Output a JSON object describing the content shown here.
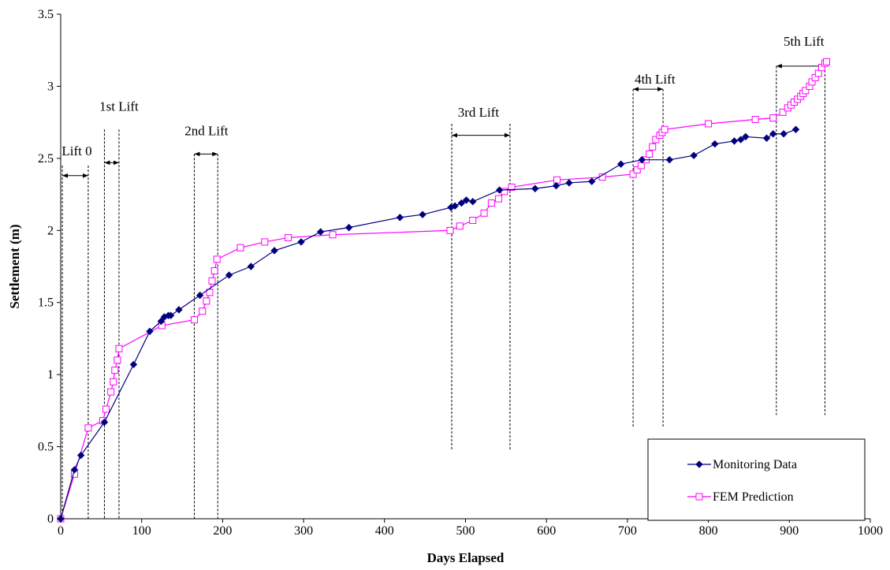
{
  "chart_data": {
    "type": "line",
    "xlabel": "Days Elapsed",
    "ylabel": "Settlement (m)",
    "xlim": [
      0,
      1000
    ],
    "ylim": [
      0,
      3.5
    ],
    "xticks": [
      0,
      100,
      200,
      300,
      400,
      500,
      600,
      700,
      800,
      900,
      1000
    ],
    "yticks": [
      0,
      0.5,
      1,
      1.5,
      2,
      2.5,
      3,
      3.5
    ],
    "ytick_labels": [
      "0",
      "0.5",
      "1",
      "1.5",
      "2",
      "2.5",
      "3",
      "3.5"
    ],
    "grid": false,
    "legend": {
      "position": "bottom-right"
    },
    "series": [
      {
        "name": "Monitoring Data",
        "color": "#00007F",
        "marker": "diamond",
        "x": [
          0,
          17,
          25,
          54,
          90,
          110,
          124,
          128,
          133,
          136,
          146,
          172,
          208,
          235,
          264,
          297,
          321,
          356,
          419,
          447,
          482,
          487,
          495,
          501,
          509,
          542,
          586,
          612,
          628,
          656,
          692,
          718,
          752,
          782,
          808,
          832,
          840,
          846,
          872,
          880,
          893,
          908
        ],
        "y": [
          0,
          0.34,
          0.44,
          0.67,
          1.07,
          1.3,
          1.37,
          1.4,
          1.41,
          1.41,
          1.45,
          1.55,
          1.69,
          1.75,
          1.86,
          1.92,
          1.99,
          2.02,
          2.09,
          2.11,
          2.16,
          2.17,
          2.19,
          2.21,
          2.2,
          2.28,
          2.29,
          2.31,
          2.33,
          2.34,
          2.46,
          2.49,
          2.49,
          2.52,
          2.6,
          2.62,
          2.63,
          2.65,
          2.64,
          2.67,
          2.67,
          2.7
        ]
      },
      {
        "name": "FEM Prediction",
        "color": "#FF00FF",
        "marker": "square-open",
        "x": [
          0,
          17,
          34,
          52,
          56,
          62,
          65,
          67,
          70,
          72,
          125,
          165,
          175,
          180,
          184,
          187,
          190,
          193,
          222,
          252,
          281,
          336,
          481,
          493,
          509,
          523,
          532,
          541,
          548,
          557,
          613,
          669,
          707,
          712,
          717,
          723,
          727,
          731,
          735,
          740,
          743,
          746,
          800,
          858,
          880,
          892,
          898,
          902,
          906,
          910,
          914,
          917,
          920,
          925,
          928,
          932,
          936,
          940,
          944,
          946
        ],
        "y": [
          0,
          0.31,
          0.63,
          0.68,
          0.76,
          0.88,
          0.95,
          1.03,
          1.1,
          1.18,
          1.34,
          1.38,
          1.44,
          1.51,
          1.57,
          1.65,
          1.72,
          1.8,
          1.88,
          1.92,
          1.95,
          1.97,
          2.0,
          2.03,
          2.07,
          2.12,
          2.19,
          2.22,
          2.27,
          2.3,
          2.35,
          2.37,
          2.39,
          2.42,
          2.45,
          2.49,
          2.53,
          2.58,
          2.63,
          2.66,
          2.68,
          2.7,
          2.74,
          2.77,
          2.78,
          2.82,
          2.85,
          2.87,
          2.89,
          2.91,
          2.93,
          2.95,
          2.97,
          3.0,
          3.03,
          3.06,
          3.09,
          3.13,
          3.16,
          3.17
        ]
      }
    ],
    "annotations": [
      {
        "label": "Lift 0",
        "range": [
          2,
          34
        ],
        "arrow_y": 2.38,
        "line_top": 2.45,
        "line_bottom": 0,
        "label_x": 20,
        "label_y": 2.52
      },
      {
        "label": "1st Lift",
        "range": [
          54,
          72
        ],
        "arrow_y": 2.47,
        "line_top": 2.7,
        "line_bottom": 0,
        "label_x": 72,
        "label_y": 2.83
      },
      {
        "label": "2nd Lift",
        "range": [
          165,
          194
        ],
        "arrow_y": 2.53,
        "line_top": 2.53,
        "line_bottom": 0,
        "label_x": 180,
        "label_y": 2.66
      },
      {
        "label": "3rd Lift",
        "range": [
          483,
          555
        ],
        "arrow_y": 2.66,
        "line_top": 2.74,
        "line_bottom": 0.47,
        "label_x": 516,
        "label_y": 2.79
      },
      {
        "label": "4th Lift",
        "range": [
          707,
          744
        ],
        "arrow_y": 2.98,
        "line_top": 2.98,
        "line_bottom": 0.64,
        "label_x": 734,
        "label_y": 3.02
      },
      {
        "label": "5th Lift",
        "range": [
          884,
          944
        ],
        "arrow_y": 3.14,
        "line_top": 3.14,
        "line_bottom": 0.72,
        "label_x": 918,
        "label_y": 3.28
      }
    ]
  }
}
